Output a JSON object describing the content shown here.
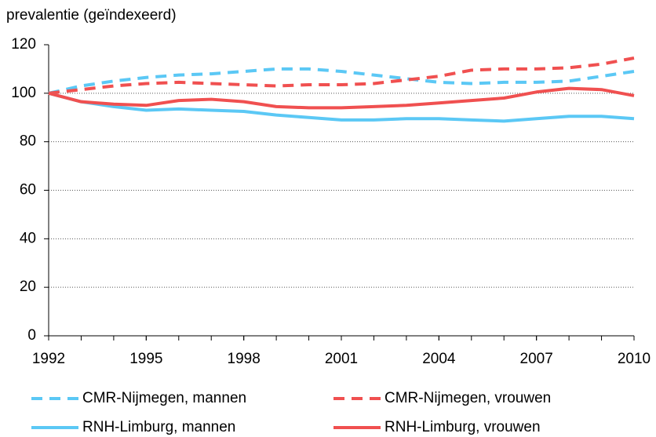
{
  "chart_data": {
    "type": "line",
    "y_axis_label": "prevalentie (geïndexeerd)",
    "x": [
      1992,
      1993,
      1994,
      1995,
      1996,
      1997,
      1998,
      1999,
      2000,
      2001,
      2002,
      2003,
      2004,
      2005,
      2006,
      2007,
      2008,
      2009,
      2010
    ],
    "xlim": [
      1992,
      2010
    ],
    "xticks": [
      1992,
      1995,
      1998,
      2001,
      2004,
      2007,
      2010
    ],
    "ylim": [
      0,
      120
    ],
    "yticks": [
      0,
      20,
      40,
      60,
      80,
      100,
      120
    ],
    "grid": true,
    "series": [
      {
        "name": "CMR-Nijmegen, mannen",
        "color": "#5bc8f5",
        "dashed": true,
        "values": [
          100,
          103,
          105,
          106.5,
          107.5,
          108,
          109,
          110,
          110,
          109,
          107.5,
          106,
          104.5,
          104,
          104.5,
          104.5,
          105,
          107,
          109
        ]
      },
      {
        "name": "CMR-Nijmegen, vrouwen",
        "color": "#f05050",
        "dashed": true,
        "values": [
          100,
          101.5,
          103,
          104,
          104.5,
          104,
          103.5,
          103,
          103.5,
          103.5,
          104,
          105.5,
          107,
          109.5,
          110,
          110,
          110.5,
          112,
          114.5
        ]
      },
      {
        "name": "RNH-Limburg, mannen",
        "color": "#5bc8f5",
        "dashed": false,
        "values": [
          100,
          96.5,
          94.5,
          93,
          93.5,
          93,
          92.5,
          91,
          90,
          89,
          89,
          89.5,
          89.5,
          89,
          88.5,
          89.5,
          90.5,
          90.5,
          89.5
        ]
      },
      {
        "name": "RNH-Limburg, vrouwen",
        "color": "#f05050",
        "dashed": false,
        "values": [
          100,
          96.5,
          95.5,
          95,
          97,
          97.5,
          96.5,
          94.5,
          94,
          94,
          94.5,
          95,
          96,
          97,
          98,
          100.5,
          102,
          101.5,
          99
        ]
      }
    ]
  }
}
